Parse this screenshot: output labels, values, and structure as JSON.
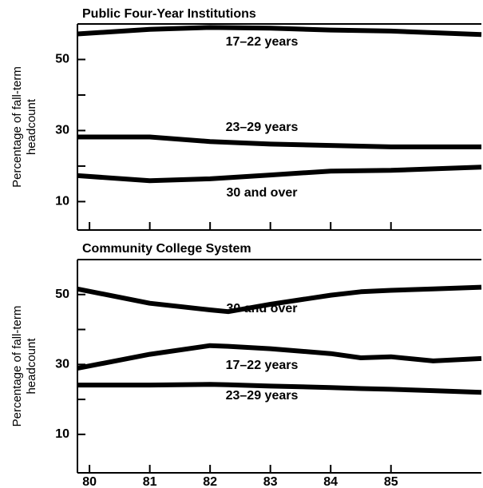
{
  "chart_data": [
    {
      "type": "line",
      "title": "Public Four-Year Institutions",
      "ylabel": [
        "Percentage of fall-term",
        "headcount"
      ],
      "x": [
        79.8,
        81,
        82,
        83,
        84,
        85,
        86.5
      ],
      "series": [
        {
          "name": "17–22 years",
          "color": "#000000",
          "values": [
            57.2,
            58.5,
            59,
            58.8,
            58.3,
            58,
            57
          ]
        },
        {
          "name": "23–29 years",
          "color": "#000000",
          "values": [
            28.2,
            28.2,
            26.9,
            26.2,
            25.8,
            25.4,
            25.4
          ]
        },
        {
          "name": "30 and over",
          "color": "#000000",
          "values": [
            17.3,
            15.9,
            16.4,
            17.5,
            18.6,
            18.8,
            19.7
          ]
        }
      ],
      "xlim": [
        79.8,
        86.5
      ],
      "xticks": [
        80,
        81,
        82,
        83,
        84,
        85
      ],
      "xtick_labels": false,
      "ylim": [
        2,
        60
      ],
      "yticks": [
        10,
        30,
        50
      ],
      "yminorticks": [
        20,
        40
      ]
    },
    {
      "type": "line",
      "title": "Community College System",
      "ylabel": [
        "Percentage of fall-term",
        "headcount"
      ],
      "x": [
        79.8,
        81,
        82,
        82.3,
        83,
        84,
        84.5,
        85,
        85.7,
        86.5
      ],
      "series": [
        {
          "name": "30 and over",
          "color": "#000000",
          "values": [
            51.6,
            47.5,
            45.6,
            45.1,
            47.2,
            49.8,
            50.8,
            51.2,
            51.6,
            52.1
          ]
        },
        {
          "name": "17–22 years",
          "color": "#000000",
          "values": [
            28.9,
            32.9,
            35.4,
            35.2,
            34.5,
            33.1,
            31.9,
            32.2,
            31,
            31.7
          ]
        },
        {
          "name": "23–29 years",
          "color": "#000000",
          "values": [
            24.1,
            24.1,
            24.3,
            24.2,
            23.8,
            23.4,
            23.1,
            22.9,
            22.5,
            22
          ]
        }
      ],
      "xlim": [
        79.8,
        86.5
      ],
      "xticks": [
        80,
        81,
        82,
        83,
        84,
        85
      ],
      "xtick_labels": true,
      "ylim": [
        -1,
        60
      ],
      "yticks": [
        10,
        30,
        50
      ],
      "yminorticks": [
        20,
        40
      ]
    }
  ]
}
